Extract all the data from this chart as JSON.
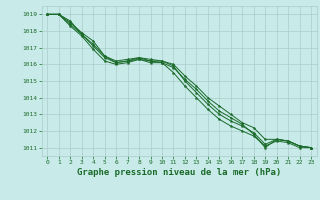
{
  "background_color": "#c8eae8",
  "grid_color": "#aacccc",
  "line_color": "#1a6b2a",
  "marker_color": "#1a6b2a",
  "xlabel": "Graphe pression niveau de la mer (hPa)",
  "xlabel_fontsize": 6.5,
  "xlim": [
    -0.5,
    23.5
  ],
  "ylim": [
    1010.5,
    1019.5
  ],
  "yticks": [
    1011,
    1012,
    1013,
    1014,
    1015,
    1016,
    1017,
    1018,
    1019
  ],
  "xticks": [
    0,
    1,
    2,
    3,
    4,
    5,
    6,
    7,
    8,
    9,
    10,
    11,
    12,
    13,
    14,
    15,
    16,
    17,
    18,
    19,
    20,
    21,
    22,
    23
  ],
  "tick_fontsize": 4.5,
  "series": [
    [
      1019.0,
      1019.0,
      1018.6,
      1017.8,
      1017.2,
      1016.5,
      1016.1,
      1016.2,
      1016.3,
      1016.1,
      1016.1,
      1015.8,
      1015.1,
      1014.5,
      1013.8,
      1013.2,
      1012.8,
      1012.4,
      1011.8,
      1011.0,
      1011.5,
      1011.4,
      1011.1,
      1011.0
    ],
    [
      1019.0,
      1019.0,
      1018.5,
      1017.9,
      1017.4,
      1016.5,
      1016.2,
      1016.3,
      1016.4,
      1016.2,
      1016.2,
      1016.0,
      1015.3,
      1014.7,
      1014.0,
      1013.5,
      1013.0,
      1012.5,
      1012.2,
      1011.5,
      1011.5,
      1011.4,
      1011.1,
      1011.0
    ],
    [
      1019.0,
      1019.0,
      1018.4,
      1017.8,
      1017.1,
      1016.4,
      1016.1,
      1016.2,
      1016.4,
      1016.3,
      1016.2,
      1015.9,
      1015.0,
      1014.3,
      1013.6,
      1013.0,
      1012.6,
      1012.3,
      1011.9,
      1011.2,
      1011.5,
      1011.4,
      1011.1,
      1011.0
    ],
    [
      1019.0,
      1019.0,
      1018.3,
      1017.7,
      1016.9,
      1016.2,
      1016.0,
      1016.1,
      1016.3,
      1016.2,
      1016.1,
      1015.5,
      1014.7,
      1014.0,
      1013.3,
      1012.7,
      1012.3,
      1012.0,
      1011.7,
      1011.1,
      1011.4,
      1011.3,
      1011.0,
      1011.0
    ]
  ]
}
